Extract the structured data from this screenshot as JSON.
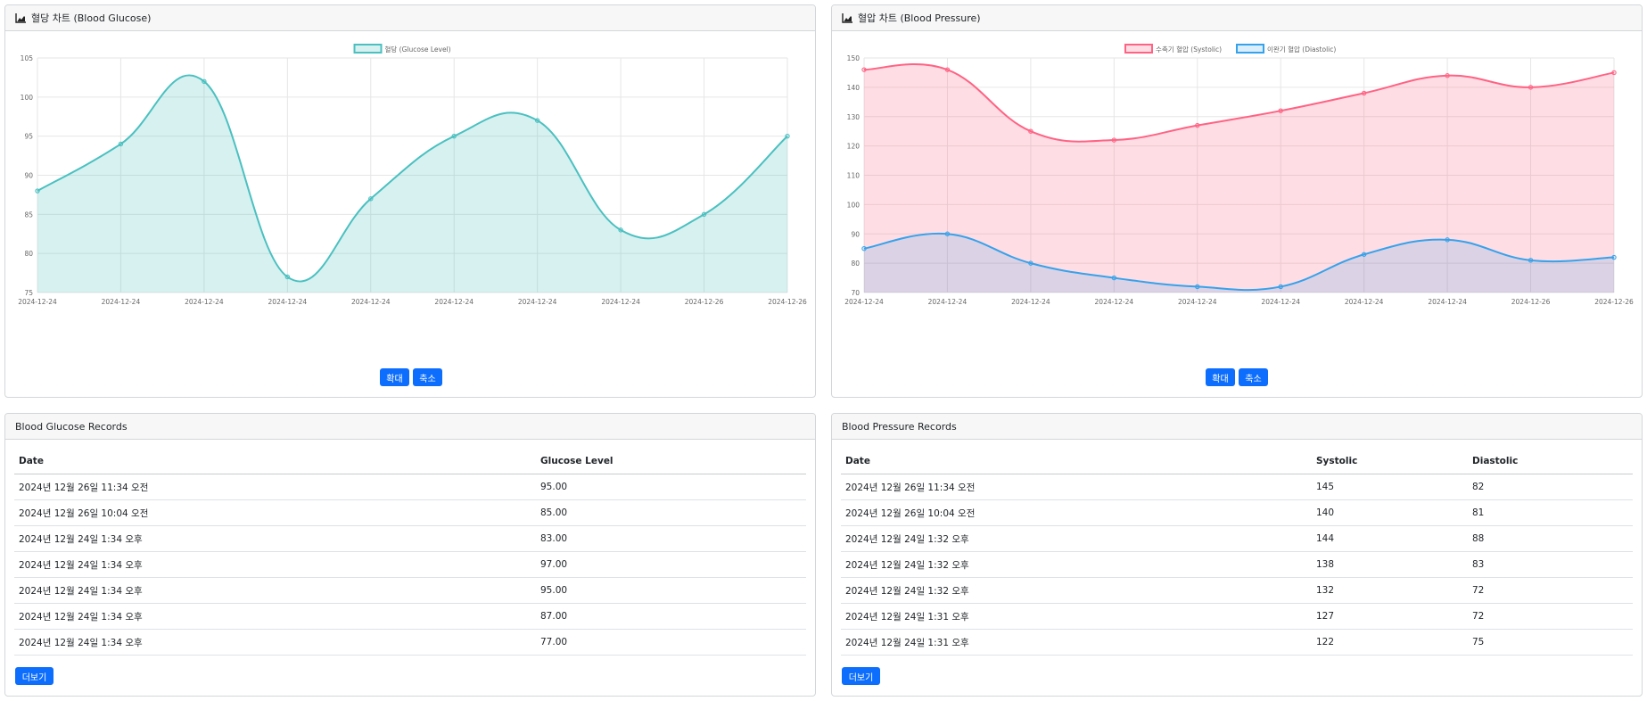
{
  "glucose_chart": {
    "header": "혈당 차트 (Blood Glucose)",
    "zoom_in": "확대",
    "zoom_out": "축소"
  },
  "pressure_chart": {
    "header": "혈압 차트 (Blood Pressure)",
    "zoom_in": "확대",
    "zoom_out": "축소"
  },
  "glucose_records": {
    "header": "Blood Glucose Records",
    "columns": [
      "Date",
      "Glucose Level"
    ],
    "rows": [
      [
        "2024년 12월 26일 11:34 오전",
        "95.00"
      ],
      [
        "2024년 12월 26일 10:04 오전",
        "85.00"
      ],
      [
        "2024년 12월 24일 1:34 오후",
        "83.00"
      ],
      [
        "2024년 12월 24일 1:34 오후",
        "97.00"
      ],
      [
        "2024년 12월 24일 1:34 오후",
        "95.00"
      ],
      [
        "2024년 12월 24일 1:34 오후",
        "87.00"
      ],
      [
        "2024년 12월 24일 1:34 오후",
        "77.00"
      ]
    ],
    "more": "더보기"
  },
  "pressure_records": {
    "header": "Blood Pressure Records",
    "columns": [
      "Date",
      "Systolic",
      "Diastolic"
    ],
    "rows": [
      [
        "2024년 12월 26일 11:34 오전",
        "145",
        "82"
      ],
      [
        "2024년 12월 26일 10:04 오전",
        "140",
        "81"
      ],
      [
        "2024년 12월 24일 1:32 오후",
        "144",
        "88"
      ],
      [
        "2024년 12월 24일 1:32 오후",
        "138",
        "83"
      ],
      [
        "2024년 12월 24일 1:32 오후",
        "132",
        "72"
      ],
      [
        "2024년 12월 24일 1:31 오후",
        "127",
        "72"
      ],
      [
        "2024년 12월 24일 1:31 오후",
        "122",
        "75"
      ]
    ],
    "more": "더보기"
  },
  "chart_data": [
    {
      "type": "line",
      "x": [
        "2024-12-24",
        "2024-12-24",
        "2024-12-24",
        "2024-12-24",
        "2024-12-24",
        "2024-12-24",
        "2024-12-24",
        "2024-12-24",
        "2024-12-26",
        "2024-12-26"
      ],
      "series": [
        {
          "name": "혈당 (Glucose Level)",
          "values": [
            88,
            94,
            102,
            77,
            87,
            95,
            97,
            83,
            85,
            95
          ],
          "color": "#4bc0c0",
          "fill": "rgba(75,192,192,0.22)"
        }
      ],
      "ylim": [
        75,
        105
      ],
      "yticks": [
        75,
        80,
        85,
        90,
        95,
        100,
        105
      ],
      "grid": true,
      "legend": "top-center",
      "area": true
    },
    {
      "type": "line",
      "x": [
        "2024-12-24",
        "2024-12-24",
        "2024-12-24",
        "2024-12-24",
        "2024-12-24",
        "2024-12-24",
        "2024-12-24",
        "2024-12-24",
        "2024-12-26",
        "2024-12-26"
      ],
      "series": [
        {
          "name": "수축기 혈압 (Systolic)",
          "values": [
            146,
            146,
            125,
            122,
            127,
            132,
            138,
            144,
            140,
            145
          ],
          "color": "#ff6384",
          "fill": "rgba(255,99,132,0.22)"
        },
        {
          "name": "이완기 혈압 (Diastolic)",
          "values": [
            85,
            90,
            80,
            75,
            72,
            72,
            83,
            88,
            81,
            82
          ],
          "color": "#36a2eb",
          "fill": "rgba(54,162,235,0.18)"
        }
      ],
      "ylim": [
        70,
        150
      ],
      "yticks": [
        70,
        80,
        90,
        100,
        110,
        120,
        130,
        140,
        150
      ],
      "grid": true,
      "legend": "top-center",
      "area": true
    }
  ]
}
